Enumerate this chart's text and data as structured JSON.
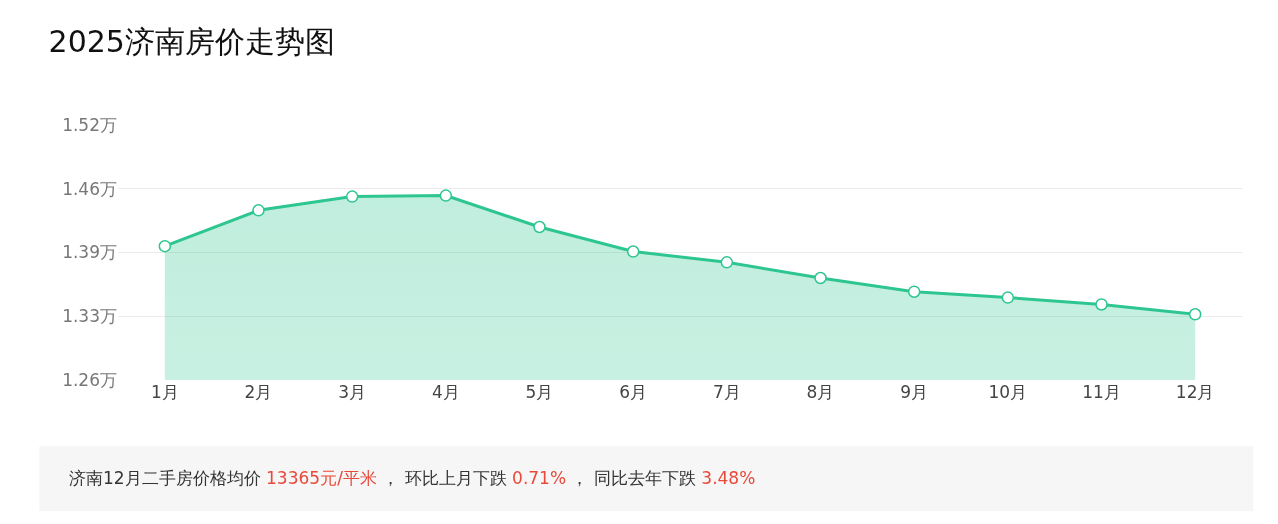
{
  "chart_data": {
    "type": "area",
    "title": "2025济南房价走势图",
    "categories": [
      "1月",
      "2月",
      "3月",
      "4月",
      "5月",
      "6月",
      "7月",
      "8月",
      "9月",
      "10月",
      "11月",
      "12月"
    ],
    "series": [
      {
        "color": "#2ec690",
        "values": [
          1.3965,
          1.433,
          1.447,
          1.448,
          1.416,
          1.391,
          1.38,
          1.364,
          1.35,
          1.344,
          1.337,
          1.327
        ]
      }
    ],
    "ylim": [
      1.26,
      1.52
    ],
    "yticks": [
      {
        "value": 1.26,
        "label": "1.26万"
      },
      {
        "value": 1.325,
        "label": "1.33万"
      },
      {
        "value": 1.39,
        "label": "1.39万"
      },
      {
        "value": 1.455,
        "label": "1.46万"
      },
      {
        "value": 1.52,
        "label": "1.52万"
      }
    ],
    "grid": "y",
    "marker": "circle",
    "line_style": "solid",
    "legend": false,
    "annotations": [
      "济南12月二手房价格均价 ",
      "13365元/平米",
      " ， 环比上月下跌 ",
      "0.71%",
      " ， 同比去年下跌 ",
      "3.48%"
    ]
  }
}
